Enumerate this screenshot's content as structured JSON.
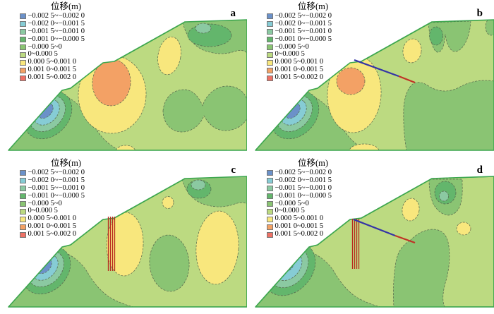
{
  "legend": {
    "title": "位移(m)",
    "items": [
      {
        "label": "−0.002 5~−0.002 0",
        "color": "#6b91c9"
      },
      {
        "label": "−0.002 0~−0.001 5",
        "color": "#86ccd5"
      },
      {
        "label": "−0.001 5~−0.001 0",
        "color": "#8bc9a2"
      },
      {
        "label": "−0.001 0~−0.000 5",
        "color": "#63b66c"
      },
      {
        "label": "−0.000 5~0",
        "color": "#8ac473"
      },
      {
        "label": "0~0.000 5",
        "color": "#bcda81"
      },
      {
        "label": "0.000 5~0.001 0",
        "color": "#f8e77d"
      },
      {
        "label": "0.001 0~0.001 5",
        "color": "#f3a165"
      },
      {
        "label": "0.001 5~0.002 0",
        "color": "#ee7165"
      }
    ]
  },
  "panels": [
    {
      "label": "a",
      "structures": []
    },
    {
      "label": "b",
      "structures": [
        "anchor-cable"
      ]
    },
    {
      "label": "c",
      "structures": [
        "stabilizing-piles"
      ]
    },
    {
      "label": "d",
      "structures": [
        "stabilizing-piles",
        "anchor-cable"
      ]
    }
  ],
  "colors": {
    "outline": "#3ca64e",
    "contour_line": "#55654c",
    "anchor_free": "#3434a6",
    "anchor_bond": "#c03226",
    "pile": "#b8291e"
  },
  "chart_data": [
    {
      "panel": "a",
      "type": "heatmap",
      "variant": "filled-contour-slope-section",
      "title": "位移(m)",
      "units": "m",
      "bins": [
        "-0.0025~-0.0020",
        "-0.0020~-0.0015",
        "-0.0015~-0.0010",
        "-0.0010~-0.0005",
        "-0.0005~0",
        "0~0.0005",
        "0.0005~0.0010",
        "0.0010~0.0015",
        "0.0015~0.0020"
      ],
      "background_bin": "0~0.0005",
      "features": [
        {
          "region": "lower-left slope bench",
          "value": "-0.0025~-0.0020 core with concentric rings to -0.0005~0"
        },
        {
          "region": "mid-slope below upper bench",
          "value": "0.0010~0.0015 core surrounded by 0.0005~0.0010"
        },
        {
          "region": "upper slope face tongue",
          "value": "0.0005~0.0010"
        },
        {
          "region": "crest / top plateau",
          "value": "-0.0010~-0.0005 with -0.0015~-0.0010 patch"
        },
        {
          "region": "right-middle bowtie blob",
          "value": "-0.0005~0"
        }
      ],
      "structures": []
    },
    {
      "panel": "b",
      "type": "heatmap",
      "variant": "filled-contour-slope-section",
      "title": "位移(m)",
      "units": "m",
      "bins": [
        "-0.0025~-0.0020",
        "-0.0020~-0.0015",
        "-0.0015~-0.0010",
        "-0.0010~-0.0005",
        "-0.0005~0",
        "0~0.0005",
        "0.0005~0.0010",
        "0.0010~0.0015",
        "0.0015~0.0020"
      ],
      "background_bin": "0~0.0005",
      "features": [
        {
          "region": "lower-left slope bench",
          "value": "-0.0025~-0.0020 core with concentric rings"
        },
        {
          "region": "mid-slope",
          "value": "smaller 0.0010~0.0015 core in 0.0005~0.0010 zone"
        },
        {
          "region": "crest",
          "value": "-0.0010~-0.0005 lobes"
        },
        {
          "region": "right half below anchor",
          "value": "large -0.0005~0 zone"
        }
      ],
      "structures": [
        "anchor cable from upper bench dipping to the right (free length + bonded length)"
      ]
    },
    {
      "panel": "c",
      "type": "heatmap",
      "variant": "filled-contour-slope-section",
      "title": "位移(m)",
      "units": "m",
      "bins": [
        "-0.0025~-0.0020",
        "-0.0020~-0.0015",
        "-0.0015~-0.0010",
        "-0.0010~-0.0005",
        "-0.0005~0",
        "0~0.0005",
        "0.0005~0.0010",
        "0.0010~0.0015",
        "0.0015~0.0020"
      ],
      "background_bin": "0~0.0005",
      "features": [
        {
          "region": "lower-left slope bench",
          "value": "-0.0025~-0.0020 core with concentric rings"
        },
        {
          "region": "around piles at upper bench",
          "value": "0.0005~0.0010 (no orange core)"
        },
        {
          "region": "right-middle large blob",
          "value": "0.0005~0.0010"
        },
        {
          "region": "center oval",
          "value": "-0.0005~0"
        },
        {
          "region": "crest",
          "value": "-0.0010~-0.0005 with -0.0015~-0.0010 patch"
        }
      ],
      "structures": [
        "row of vertical stabilizing piles at upper bench"
      ]
    },
    {
      "panel": "d",
      "type": "heatmap",
      "variant": "filled-contour-slope-section",
      "title": "位移(m)",
      "units": "m",
      "bins": [
        "-0.0025~-0.0020",
        "-0.0020~-0.0015",
        "-0.0015~-0.0010",
        "-0.0010~-0.0005",
        "-0.0005~0",
        "0~0.0005",
        "0.0005~0.0010",
        "0.0010~0.0015",
        "0.0015~0.0020"
      ],
      "background_bin": "0~0.0005",
      "features": [
        {
          "region": "lower-left slope bench",
          "value": "-0.0025~-0.0020 core, enlarged ring system"
        },
        {
          "region": "upper slope tongue",
          "value": "small 0.0005~0.0010 patch"
        },
        {
          "region": "right-middle small oval",
          "value": "small 0.0005~0.0010 patch"
        },
        {
          "region": "center-right vertical lozenge",
          "value": "-0.0005~0"
        },
        {
          "region": "crest",
          "value": "-0.0010~-0.0005 with -0.0015~-0.0010 tip"
        }
      ],
      "structures": [
        "row of vertical stabilizing piles",
        "anchor cable dipping to the right"
      ]
    }
  ]
}
